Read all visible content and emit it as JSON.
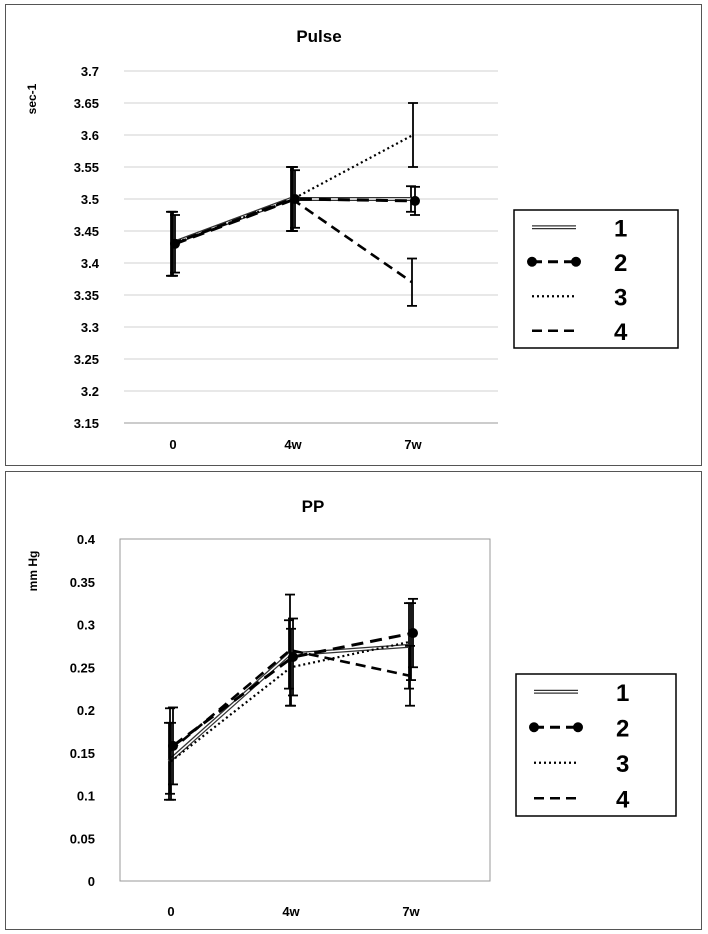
{
  "chart_data": [
    {
      "type": "line",
      "title": "Pulse",
      "ylabel": "sec-1",
      "xlabel": "",
      "categories": [
        "0",
        "4w",
        "7w"
      ],
      "ylim": [
        3.15,
        3.7
      ],
      "ytick_step": 0.05,
      "yticks": [
        "3.15",
        "3.2",
        "3.25",
        "3.3",
        "3.35",
        "3.4",
        "3.45",
        "3.5",
        "3.55",
        "3.6",
        "3.65",
        "3.7"
      ],
      "grid": true,
      "legend_position": "right",
      "series": [
        {
          "name": "1",
          "style": "double",
          "values": [
            3.43,
            3.5,
            3.5
          ],
          "error": [
            0.05,
            0.05,
            0.02
          ]
        },
        {
          "name": "2",
          "style": "dash-marker",
          "values": [
            3.43,
            3.5,
            3.497
          ],
          "error": [
            0.045,
            0.045,
            0.022
          ]
        },
        {
          "name": "3",
          "style": "dotted",
          "values": [
            3.43,
            3.5,
            3.6
          ],
          "error": [
            0.05,
            0.05,
            0.05
          ]
        },
        {
          "name": "4",
          "style": "dashed",
          "values": [
            3.43,
            3.5,
            3.37
          ],
          "error": [
            0.05,
            0.05,
            0.037
          ]
        }
      ]
    },
    {
      "type": "line",
      "title": "PP",
      "ylabel": "mm Hg",
      "xlabel": "",
      "categories": [
        "0",
        "4w",
        "7w"
      ],
      "ylim": [
        0,
        0.4
      ],
      "ytick_step": 0.05,
      "yticks": [
        "0",
        "0.05",
        "0.1",
        "0.15",
        "0.2",
        "0.25",
        "0.3",
        "0.35",
        "0.4"
      ],
      "grid": false,
      "legend_position": "right",
      "series": [
        {
          "name": "1",
          "style": "double",
          "values": [
            0.14,
            0.265,
            0.275
          ],
          "error": [
            0.045,
            0.04,
            0.05
          ]
        },
        {
          "name": "2",
          "style": "dash-marker",
          "values": [
            0.158,
            0.262,
            0.29
          ],
          "error": [
            0.045,
            0.045,
            0.04
          ]
        },
        {
          "name": "3",
          "style": "dotted",
          "values": [
            0.14,
            0.25,
            0.28
          ],
          "error": [
            0.045,
            0.045,
            0.045
          ]
        },
        {
          "name": "4",
          "style": "dashed",
          "values": [
            0.152,
            0.27,
            0.24
          ],
          "error": [
            0.05,
            0.065,
            0.035
          ]
        }
      ]
    }
  ]
}
